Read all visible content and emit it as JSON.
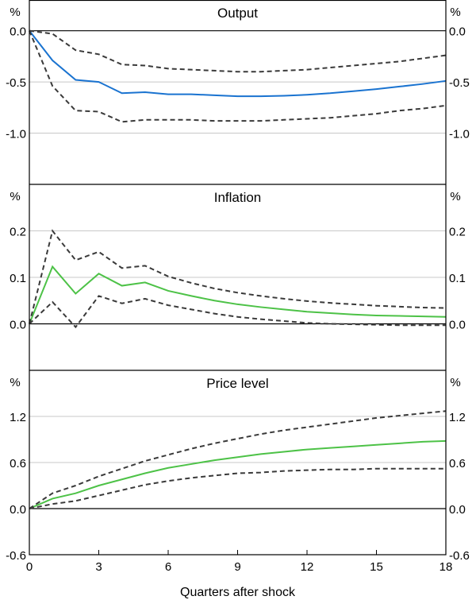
{
  "chart_data": {
    "type": "line",
    "xlabel": "Quarters after shock",
    "x_ticks": [
      0,
      3,
      6,
      9,
      12,
      15,
      18
    ],
    "xlim": [
      0,
      18
    ],
    "unit_label": "%",
    "panels": [
      {
        "title": "Output",
        "ylim": [
          -1.5,
          0.3
        ],
        "y_ticks": [
          0.0,
          -0.5,
          -1.0
        ],
        "y_tick_labels": [
          "0.0",
          "-0.5",
          "-1.0"
        ],
        "zero_line": 0,
        "color": "#1a73d0",
        "x": [
          0,
          1,
          2,
          3,
          4,
          5,
          6,
          7,
          8,
          9,
          10,
          11,
          12,
          13,
          14,
          15,
          16,
          17,
          18
        ],
        "series": [
          {
            "name": "estimate",
            "style": "solid",
            "values": [
              0,
              -0.29,
              -0.48,
              -0.5,
              -0.61,
              -0.6,
              -0.62,
              -0.62,
              -0.63,
              -0.64,
              -0.64,
              -0.635,
              -0.625,
              -0.61,
              -0.59,
              -0.57,
              -0.545,
              -0.52,
              -0.49
            ]
          },
          {
            "name": "upper band",
            "style": "dashed",
            "values": [
              0,
              -0.03,
              -0.19,
              -0.23,
              -0.33,
              -0.34,
              -0.37,
              -0.38,
              -0.39,
              -0.4,
              -0.4,
              -0.39,
              -0.38,
              -0.36,
              -0.34,
              -0.32,
              -0.3,
              -0.27,
              -0.24
            ]
          },
          {
            "name": "lower band",
            "style": "dashed",
            "values": [
              0,
              -0.54,
              -0.78,
              -0.79,
              -0.89,
              -0.87,
              -0.87,
              -0.87,
              -0.88,
              -0.88,
              -0.88,
              -0.87,
              -0.86,
              -0.85,
              -0.83,
              -0.81,
              -0.78,
              -0.76,
              -0.73
            ]
          }
        ]
      },
      {
        "title": "Inflation",
        "ylim": [
          -0.1,
          0.3
        ],
        "y_ticks": [
          0.2,
          0.1,
          0.0
        ],
        "y_tick_labels": [
          "0.2",
          "0.1",
          "0.0"
        ],
        "zero_line": 0,
        "color": "#4dc247",
        "x": [
          0,
          1,
          2,
          3,
          4,
          5,
          6,
          7,
          8,
          9,
          10,
          11,
          12,
          13,
          14,
          15,
          16,
          17,
          18
        ],
        "series": [
          {
            "name": "estimate",
            "style": "solid",
            "values": [
              0,
              0.123,
              0.065,
              0.108,
              0.082,
              0.089,
              0.071,
              0.06,
              0.05,
              0.042,
              0.036,
              0.031,
              0.026,
              0.023,
              0.02,
              0.018,
              0.017,
              0.016,
              0.015
            ]
          },
          {
            "name": "upper band",
            "style": "dashed",
            "values": [
              0,
              0.2,
              0.137,
              0.155,
              0.12,
              0.125,
              0.102,
              0.088,
              0.076,
              0.067,
              0.06,
              0.054,
              0.049,
              0.045,
              0.042,
              0.039,
              0.037,
              0.035,
              0.034
            ]
          },
          {
            "name": "lower band",
            "style": "dashed",
            "values": [
              0,
              0.047,
              -0.007,
              0.06,
              0.044,
              0.054,
              0.04,
              0.031,
              0.022,
              0.015,
              0.01,
              0.006,
              0.002,
              0.0,
              -0.001,
              -0.002,
              -0.003,
              -0.003,
              -0.003
            ]
          }
        ]
      },
      {
        "title": "Price level",
        "ylim": [
          -0.6,
          1.8
        ],
        "y_ticks": [
          1.2,
          0.6,
          0.0,
          -0.6
        ],
        "y_tick_labels": [
          "1.2",
          "0.6",
          "0.0",
          "-0.6"
        ],
        "zero_line": 0,
        "color": "#4dc247",
        "x": [
          0,
          1,
          2,
          3,
          4,
          5,
          6,
          7,
          8,
          9,
          10,
          11,
          12,
          13,
          14,
          15,
          16,
          17,
          18
        ],
        "series": [
          {
            "name": "estimate",
            "style": "solid",
            "values": [
              0,
              0.13,
              0.2,
              0.3,
              0.38,
              0.46,
              0.53,
              0.58,
              0.63,
              0.67,
              0.71,
              0.74,
              0.77,
              0.79,
              0.81,
              0.83,
              0.85,
              0.87,
              0.88
            ]
          },
          {
            "name": "upper band",
            "style": "dashed",
            "values": [
              0,
              0.2,
              0.3,
              0.42,
              0.52,
              0.62,
              0.7,
              0.78,
              0.85,
              0.91,
              0.97,
              1.02,
              1.06,
              1.1,
              1.14,
              1.18,
              1.21,
              1.24,
              1.27
            ]
          },
          {
            "name": "lower band",
            "style": "dashed",
            "values": [
              0,
              0.06,
              0.1,
              0.17,
              0.24,
              0.31,
              0.36,
              0.4,
              0.43,
              0.46,
              0.47,
              0.49,
              0.5,
              0.51,
              0.51,
              0.52,
              0.52,
              0.52,
              0.52
            ]
          }
        ]
      }
    ]
  }
}
